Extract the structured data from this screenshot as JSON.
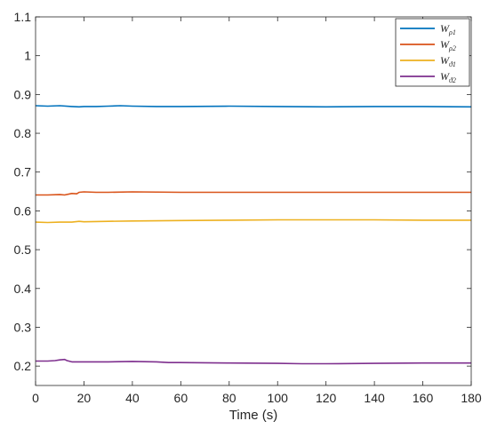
{
  "chart_data": {
    "type": "line",
    "title": "",
    "xlabel": "Time (s)",
    "ylabel": "",
    "xlim": [
      0,
      180
    ],
    "ylim": [
      0.15,
      1.1
    ],
    "xticks": [
      0,
      20,
      40,
      60,
      80,
      100,
      120,
      140,
      160,
      180
    ],
    "xtick_labels": [
      "0",
      "20",
      "40",
      "60",
      "80",
      "100",
      "120",
      "140",
      "160",
      "180"
    ],
    "yticks": [
      0.2,
      0.3,
      0.4,
      0.5,
      0.6,
      0.7,
      0.8,
      0.9,
      1.0,
      1.1
    ],
    "ytick_labels": [
      "0.2",
      "0.3",
      "0.4",
      "0.5",
      "0.6",
      "0.7",
      "0.8",
      "0.9",
      "1",
      "1.1"
    ],
    "grid": false,
    "legend_position": "top-right",
    "series": [
      {
        "name": "W_ρ1",
        "legend_main": "W",
        "legend_sub": "ρ1",
        "color": "#0072BD",
        "x": [
          0,
          5,
          10,
          15,
          18,
          20,
          25,
          30,
          35,
          40,
          50,
          60,
          80,
          100,
          120,
          140,
          160,
          180
        ],
        "y": [
          0.871,
          0.87,
          0.871,
          0.869,
          0.868,
          0.869,
          0.869,
          0.87,
          0.871,
          0.87,
          0.869,
          0.869,
          0.87,
          0.869,
          0.868,
          0.869,
          0.869,
          0.868
        ]
      },
      {
        "name": "W_ρ2",
        "legend_main": "W",
        "legend_sub": "ρ2",
        "color": "#D95319",
        "x": [
          0,
          5,
          10,
          12,
          15,
          17,
          18,
          20,
          25,
          30,
          40,
          60,
          80,
          100,
          120,
          140,
          160,
          180
        ],
        "y": [
          0.641,
          0.641,
          0.642,
          0.641,
          0.645,
          0.644,
          0.648,
          0.649,
          0.648,
          0.648,
          0.649,
          0.648,
          0.648,
          0.648,
          0.648,
          0.648,
          0.648,
          0.648
        ]
      },
      {
        "name": "W_ϑ1",
        "legend_main": "W",
        "legend_sub": "ϑ1",
        "color": "#EDB120",
        "x": [
          0,
          5,
          10,
          15,
          18,
          20,
          30,
          40,
          60,
          80,
          100,
          120,
          140,
          160,
          180
        ],
        "y": [
          0.571,
          0.57,
          0.571,
          0.571,
          0.573,
          0.572,
          0.573,
          0.574,
          0.575,
          0.576,
          0.577,
          0.577,
          0.577,
          0.576,
          0.576
        ]
      },
      {
        "name": "W_ϑ2",
        "legend_main": "W",
        "legend_sub": "ϑ2",
        "color": "#7E2F8E",
        "x": [
          0,
          5,
          8,
          10,
          12,
          13,
          15,
          17,
          20,
          30,
          40,
          50,
          55,
          60,
          80,
          100,
          110,
          120,
          140,
          160,
          180
        ],
        "y": [
          0.213,
          0.213,
          0.214,
          0.216,
          0.217,
          0.214,
          0.211,
          0.211,
          0.211,
          0.211,
          0.212,
          0.211,
          0.209,
          0.209,
          0.208,
          0.207,
          0.206,
          0.206,
          0.207,
          0.208,
          0.208
        ]
      }
    ]
  }
}
